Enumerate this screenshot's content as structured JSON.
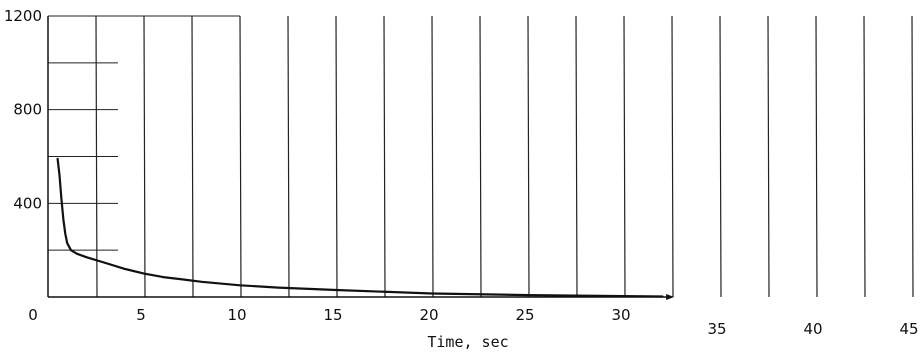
{
  "chart_data": {
    "type": "line",
    "xlabel": "Time, sec",
    "ylabel": "",
    "xlim": [
      0,
      45
    ],
    "ylim": [
      0,
      1200
    ],
    "x_ticks": [
      0,
      5,
      10,
      15,
      20,
      25,
      30,
      35,
      40,
      45
    ],
    "y_ticks": [
      400,
      800,
      1200
    ],
    "x_tick_labels": [
      "0",
      "5",
      "10",
      "15",
      "20",
      "25",
      "30",
      "35",
      "40",
      "45"
    ],
    "y_tick_labels": [
      "400",
      "800",
      "1200"
    ],
    "grid": true,
    "series": [
      {
        "x": [
          0.5,
          0.6,
          0.7,
          0.8,
          0.9,
          1.0,
          1.2,
          1.5,
          2,
          3,
          4,
          5,
          6,
          7,
          8,
          10,
          12,
          15,
          20,
          25,
          30,
          32
        ],
        "y": [
          590,
          520,
          420,
          330,
          270,
          230,
          200,
          185,
          170,
          145,
          120,
          100,
          85,
          75,
          65,
          50,
          40,
          30,
          15,
          8,
          4,
          2
        ]
      }
    ],
    "colors": {
      "line": "#111111",
      "grid": "#222222"
    }
  }
}
